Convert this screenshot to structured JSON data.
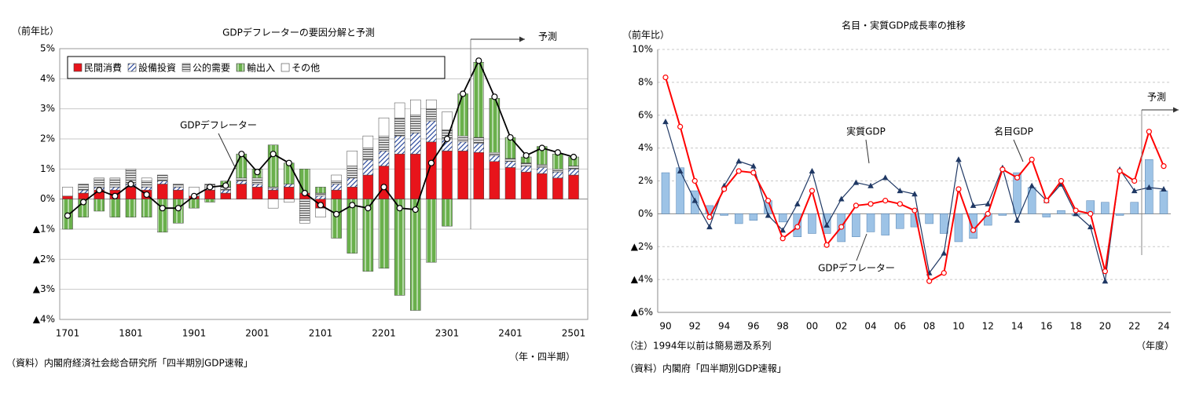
{
  "chart_data": [
    {
      "type": "bar",
      "stacked": true,
      "title": "GDPデフレーターの要因分解と予測",
      "y_label": "（前年比）",
      "x_label": "（年・四半期）",
      "source": "（資料）内閣府経済社会総合研究所「四半期別GDP速報」",
      "forecast_label": "予測",
      "categories": [
        "1701",
        null,
        null,
        null,
        "1801",
        null,
        null,
        null,
        "1901",
        null,
        null,
        null,
        "2001",
        null,
        null,
        null,
        "2101",
        null,
        null,
        null,
        "2201",
        null,
        null,
        null,
        "2301",
        null,
        null,
        null,
        "2401",
        null,
        null,
        null,
        "2501"
      ],
      "series": [
        {
          "name": "民間消費",
          "color": "#e8141b",
          "pattern": "solid",
          "values": [
            0.1,
            0.2,
            0.3,
            0.3,
            0.4,
            0.3,
            0.5,
            0.3,
            0.1,
            0.3,
            0.2,
            0.5,
            0.4,
            0.3,
            0.4,
            0.2,
            -0.3,
            0.3,
            0.4,
            0.8,
            1.1,
            1.5,
            1.5,
            1.9,
            1.6,
            1.6,
            1.55,
            1.25,
            1.05,
            0.9,
            0.85,
            0.7,
            0.8
          ]
        },
        {
          "name": "設備投資",
          "color": "#2e4c9e",
          "pattern": "diagonal",
          "values": [
            0,
            0.1,
            0.1,
            0.1,
            0.1,
            0.1,
            0.1,
            0.1,
            0,
            0.1,
            0.1,
            0.1,
            0.1,
            0.05,
            0.1,
            0,
            0.1,
            0.2,
            0.3,
            0.5,
            0.5,
            0.6,
            0.7,
            0.7,
            0.4,
            0.3,
            0.3,
            0.2,
            0.2,
            0.2,
            0.2,
            0.2,
            0.2
          ]
        },
        {
          "name": "公的需要",
          "color": "#555555",
          "pattern": "horizontal",
          "values": [
            0,
            0.2,
            0.3,
            0.3,
            0.5,
            0.2,
            0.2,
            0.1,
            0,
            0.1,
            0.1,
            0.1,
            0.2,
            0.05,
            0,
            -0.7,
            0.1,
            0.1,
            0.4,
            0.4,
            0.5,
            0.6,
            0.6,
            0.4,
            0.3,
            0.2,
            0.2,
            0.1,
            0.1,
            0.1,
            0.1,
            0.1,
            0.1
          ]
        },
        {
          "name": "輸出入",
          "color": "#6ab04c",
          "pattern": "vertical",
          "values": [
            -1.0,
            -0.6,
            -0.4,
            -0.6,
            -0.6,
            -0.6,
            -1.1,
            -0.8,
            -0.3,
            -0.1,
            0.2,
            0.8,
            0.3,
            1.4,
            0.7,
            0.8,
            0.2,
            -1.3,
            -1.8,
            -2.4,
            -2.3,
            -3.2,
            -3.7,
            -2.1,
            -0.9,
            1.4,
            2.5,
            1.8,
            0.7,
            0.2,
            0.6,
            0.5,
            0.3
          ]
        },
        {
          "name": "その他",
          "color": "#ffffff",
          "pattern": "solid",
          "values": [
            0.3,
            0,
            0,
            0,
            0,
            0.1,
            0,
            0,
            0.3,
            0,
            0,
            0,
            0,
            -0.3,
            -0.1,
            -0.1,
            -0.3,
            0.2,
            0.5,
            0.4,
            0.6,
            0.5,
            0.5,
            0.3,
            0.6,
            0,
            0,
            0,
            0,
            0,
            0,
            0,
            0
          ]
        },
        {
          "name": "GDPデフレーター",
          "type": "line",
          "color": "#000000",
          "marker": "circle",
          "values": [
            -0.55,
            -0.1,
            0.3,
            0.1,
            0.5,
            0.15,
            -0.3,
            -0.3,
            0.1,
            0.4,
            0.45,
            1.5,
            0.9,
            1.5,
            1.2,
            0.2,
            -0.2,
            -0.5,
            -0.2,
            -0.3,
            0.4,
            -0.3,
            -0.35,
            1.2,
            2.0,
            3.5,
            4.6,
            3.4,
            2.05,
            1.45,
            1.7,
            1.55,
            1.4
          ]
        }
      ],
      "ylim": [
        -4,
        5
      ],
      "yticks": [
        {
          "value": 5,
          "label": "5%"
        },
        {
          "value": 4,
          "label": "4%"
        },
        {
          "value": 3,
          "label": "3%"
        },
        {
          "value": 2,
          "label": "2%"
        },
        {
          "value": 1,
          "label": "1%"
        },
        {
          "value": 0,
          "label": "0%"
        },
        {
          "value": -1,
          "label": "▲1%"
        },
        {
          "value": -2,
          "label": "▲2%"
        },
        {
          "value": -3,
          "label": "▲3%"
        },
        {
          "value": -4,
          "label": "▲4%"
        }
      ],
      "grid": true,
      "legend": "upper left"
    },
    {
      "type": "bar",
      "title": "名目・実質GDP成長率の推移",
      "y_label": "（前年比）",
      "x_label": "（年度）",
      "note": "（注）1994年以前は簡易遡及系列",
      "source": "（資料）内閣府「四半期別GDP速報」",
      "forecast_label": "予測",
      "categories": [
        "90",
        null,
        "92",
        null,
        "94",
        null,
        "96",
        null,
        "98",
        null,
        "00",
        null,
        "02",
        null,
        "04",
        null,
        "06",
        null,
        "08",
        null,
        "10",
        null,
        "12",
        null,
        "14",
        null,
        "16",
        null,
        "18",
        null,
        "20",
        null,
        "22",
        null,
        "24"
      ],
      "series": [
        {
          "name": "GDPデフレーター",
          "color": "#9dc3e6",
          "pattern": "solid",
          "values": [
            2.5,
            2.8,
            1.4,
            0.5,
            -0.1,
            -0.6,
            -0.4,
            0.8,
            -0.5,
            -1.4,
            -1.2,
            -1.2,
            -1.7,
            -1.4,
            -1.1,
            -1.3,
            -0.9,
            -0.8,
            -0.6,
            -1.2,
            -1.7,
            -1.5,
            -0.7,
            -0.1,
            2.5,
            1.6,
            -0.2,
            0.2,
            -0.1,
            0.8,
            0.7,
            -0.1,
            0.7,
            3.3,
            1.4
          ]
        },
        {
          "name": "実質GDP",
          "type": "line",
          "color": "#1f3864",
          "marker": "triangle",
          "values": [
            5.6,
            2.6,
            0.8,
            -0.8,
            1.7,
            3.2,
            2.9,
            -0.1,
            -1.0,
            0.6,
            2.6,
            -0.7,
            0.9,
            1.9,
            1.7,
            2.2,
            1.4,
            1.2,
            -3.6,
            -2.4,
            3.3,
            0.5,
            0.6,
            2.8,
            -0.4,
            1.7,
            0.8,
            1.8,
            0.0,
            -0.8,
            -4.1,
            2.7,
            1.4,
            1.6,
            1.5
          ]
        },
        {
          "name": "名目GDP",
          "type": "line",
          "color": "#ff0000",
          "marker": "circle",
          "values": [
            8.3,
            5.3,
            2.0,
            -0.2,
            1.5,
            2.6,
            2.5,
            0.8,
            -1.5,
            -0.8,
            1.4,
            -1.9,
            -0.8,
            0.5,
            0.6,
            0.8,
            0.6,
            0.2,
            -4.1,
            -3.6,
            1.5,
            -1.0,
            0.0,
            2.7,
            2.2,
            3.3,
            0.8,
            2.0,
            0.2,
            0.0,
            -3.5,
            2.6,
            2.0,
            5.0,
            2.9
          ]
        }
      ],
      "ylim": [
        -6,
        10
      ],
      "yticks": [
        {
          "value": 10,
          "label": "10%"
        },
        {
          "value": 8,
          "label": "8%"
        },
        {
          "value": 6,
          "label": "6%"
        },
        {
          "value": 4,
          "label": "4%"
        },
        {
          "value": 2,
          "label": "2%"
        },
        {
          "value": 0,
          "label": "0%"
        },
        {
          "value": -2,
          "label": "▲2%"
        },
        {
          "value": -4,
          "label": "▲4%"
        },
        {
          "value": -6,
          "label": "▲6%"
        }
      ],
      "grid": true
    }
  ]
}
